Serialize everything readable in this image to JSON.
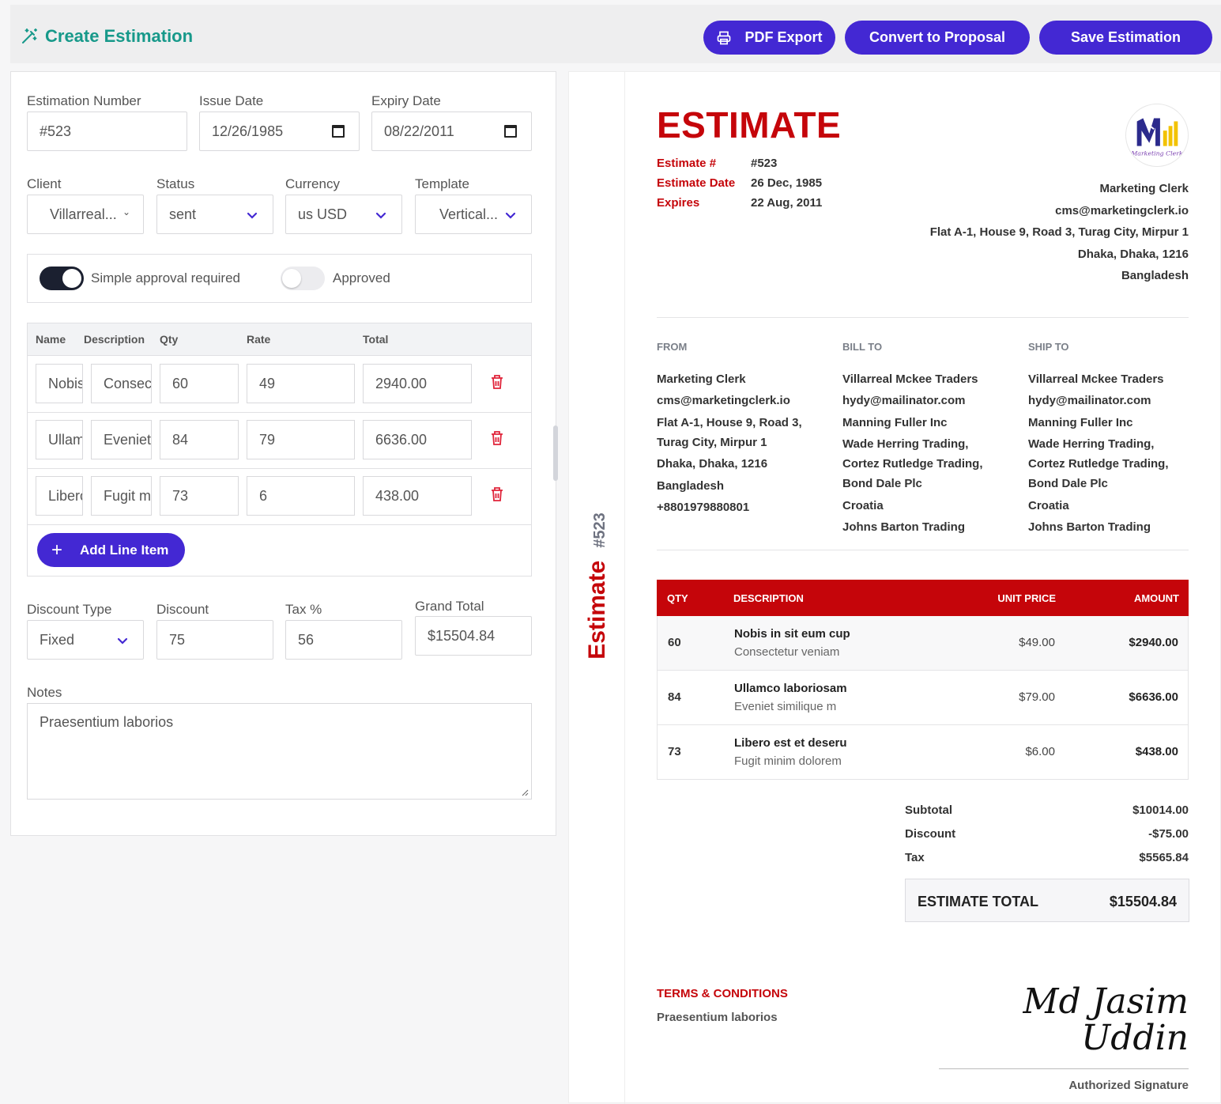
{
  "header": {
    "title": "Create Estimation",
    "pdf_export": "PDF Export",
    "convert": "Convert to Proposal",
    "save": "Save Estimation"
  },
  "form": {
    "estimation_number_label": "Estimation Number",
    "estimation_number": "#523",
    "issue_date_label": "Issue Date",
    "issue_date": "12/26/1985",
    "expiry_date_label": "Expiry Date",
    "expiry_date": "08/22/2011",
    "client_label": "Client",
    "client": "Villarreal...",
    "status_label": "Status",
    "status": "sent",
    "currency_label": "Currency",
    "currency": "us USD",
    "template_label": "Template",
    "template": "Vertical...",
    "simple_approval": "Simple approval required",
    "approved": "Approved",
    "simple_approval_on": true,
    "approved_on": false,
    "items_header": {
      "name": "Name",
      "description": "Description",
      "qty": "Qty",
      "rate": "Rate",
      "total": "Total"
    },
    "items": [
      {
        "name": "Nobis in sit eum cup",
        "description": "Consectetur veniam",
        "qty": "60",
        "rate": "49",
        "total": "2940.00"
      },
      {
        "name": "Ullamco laboriosam",
        "description": "Eveniet similique m",
        "qty": "84",
        "rate": "79",
        "total": "6636.00"
      },
      {
        "name": "Libero est et deseru",
        "description": "Fugit minim dolorem",
        "qty": "73",
        "rate": "6",
        "total": "438.00"
      }
    ],
    "add_line_item": "Add Line Item",
    "discount_type_label": "Discount Type",
    "discount_type": "Fixed",
    "discount_label": "Discount",
    "discount": "75",
    "tax_label": "Tax %",
    "tax": "56",
    "grand_total_label": "Grand Total",
    "grand_total": "$15504.84",
    "notes_label": "Notes",
    "notes": "Praesentium laborios"
  },
  "preview": {
    "side_word": "Estimate",
    "side_number": "#523",
    "title": "ESTIMATE",
    "meta": [
      {
        "k": "Estimate #",
        "v": "#523"
      },
      {
        "k": "Estimate Date",
        "v": "26 Dec, 1985"
      },
      {
        "k": "Expires",
        "v": "22 Aug, 2011"
      }
    ],
    "logo_text": "Marketing Clerk",
    "company": [
      "Marketing Clerk",
      "cms@marketingclerk.io",
      "Flat A-1, House 9, Road 3, Turag City, Mirpur 1",
      "Dhaka, Dhaka, 1216",
      "Bangladesh"
    ],
    "from_label": "FROM",
    "from": [
      "Marketing Clerk",
      "cms@marketingclerk.io",
      "Flat A-1, House 9, Road 3,",
      "Turag City, Mirpur 1",
      "Dhaka, Dhaka, 1216",
      "Bangladesh",
      "+8801979880801"
    ],
    "bill_label": "BILL TO",
    "bill": [
      "Villarreal Mckee Traders",
      "hydy@mailinator.com",
      "Manning Fuller Inc",
      "Wade Herring Trading,",
      "Cortez Rutledge Trading,",
      "Bond Dale Plc",
      "Croatia",
      "Johns Barton Trading"
    ],
    "ship_label": "SHIP TO",
    "ship": [
      "Villarreal Mckee Traders",
      "hydy@mailinator.com",
      "Manning Fuller Inc",
      "Wade Herring Trading,",
      "Cortez Rutledge Trading,",
      "Bond Dale Plc",
      "Croatia",
      "Johns Barton Trading"
    ],
    "table_head": {
      "qty": "QTY",
      "description": "DESCRIPTION",
      "unit_price": "UNIT PRICE",
      "amount": "AMOUNT"
    },
    "rows": [
      {
        "qty": "60",
        "name": "Nobis in sit eum cup",
        "desc": "Consectetur veniam",
        "unit": "$49.00",
        "amount": "$2940.00"
      },
      {
        "qty": "84",
        "name": "Ullamco laboriosam",
        "desc": "Eveniet similique m",
        "unit": "$79.00",
        "amount": "$6636.00"
      },
      {
        "qty": "73",
        "name": "Libero est et deseru",
        "desc": "Fugit minim dolorem",
        "unit": "$6.00",
        "amount": "$438.00"
      }
    ],
    "subtotal_label": "Subtotal",
    "subtotal": "$10014.00",
    "discount_label": "Discount",
    "discount": "-$75.00",
    "tax_label": "Tax",
    "tax": "$5565.84",
    "total_label": "ESTIMATE TOTAL",
    "total": "$15504.84",
    "terms_label": "TERMS & CONDITIONS",
    "terms": "Praesentium laborios",
    "signature_line1": "Md Jasim",
    "signature_line2": "Uddin",
    "signature_label": "Authorized Signature"
  },
  "colors": {
    "accent": "#4328d3",
    "title_teal": "#17998a",
    "estimate_red": "#c5050a"
  }
}
